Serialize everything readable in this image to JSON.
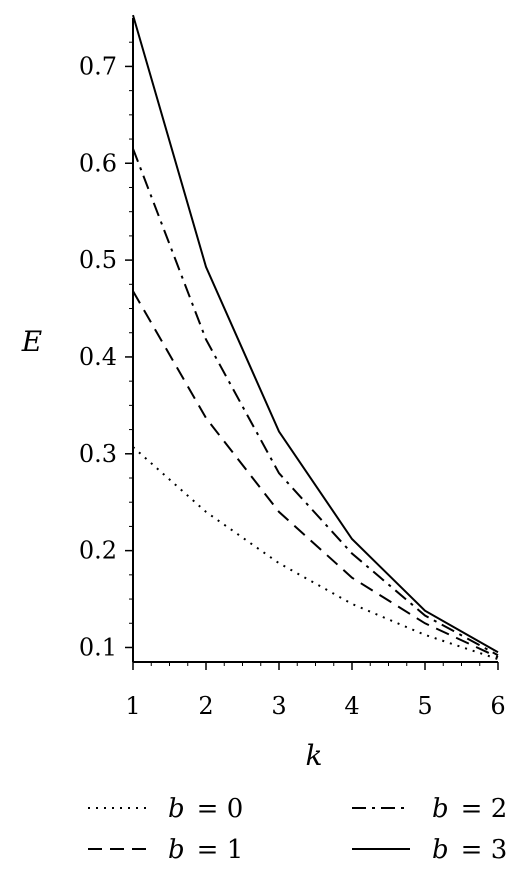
{
  "chart_data": {
    "type": "line",
    "title": "",
    "xlabel": "k",
    "ylabel": "E",
    "xlim": [
      1,
      6
    ],
    "ylim": [
      0.085,
      0.75
    ],
    "xticks": [
      1,
      2,
      3,
      4,
      5,
      6
    ],
    "xtick_labels": [
      "1",
      "2",
      "3",
      "4",
      "5",
      "6"
    ],
    "yticks": [
      0.1,
      0.2,
      0.3,
      0.4,
      0.5,
      0.6,
      0.7
    ],
    "ytick_labels": [
      "0.1",
      "0.2",
      "0.3",
      "0.4",
      "0.5",
      "0.6",
      "0.7"
    ],
    "grid": false,
    "legend_position": "bottom",
    "legend_var": "b",
    "legend_eq": "= ",
    "x": [
      1,
      2,
      3,
      4,
      5,
      6
    ],
    "series": [
      {
        "name": "b = 0",
        "value_label": "0",
        "style": "dotted",
        "values": [
          0.307,
          0.24,
          0.187,
          0.145,
          0.113,
          0.088
        ]
      },
      {
        "name": "b = 1",
        "value_label": "1",
        "style": "dashed",
        "values": [
          0.468,
          0.337,
          0.24,
          0.172,
          0.125,
          0.09
        ]
      },
      {
        "name": "b = 2",
        "value_label": "2",
        "style": "dashdot",
        "values": [
          0.615,
          0.418,
          0.28,
          0.197,
          0.133,
          0.092
        ]
      },
      {
        "name": "b = 3",
        "value_label": "3",
        "style": "solid",
        "values": [
          0.753,
          0.493,
          0.323,
          0.212,
          0.138,
          0.095
        ]
      }
    ]
  }
}
